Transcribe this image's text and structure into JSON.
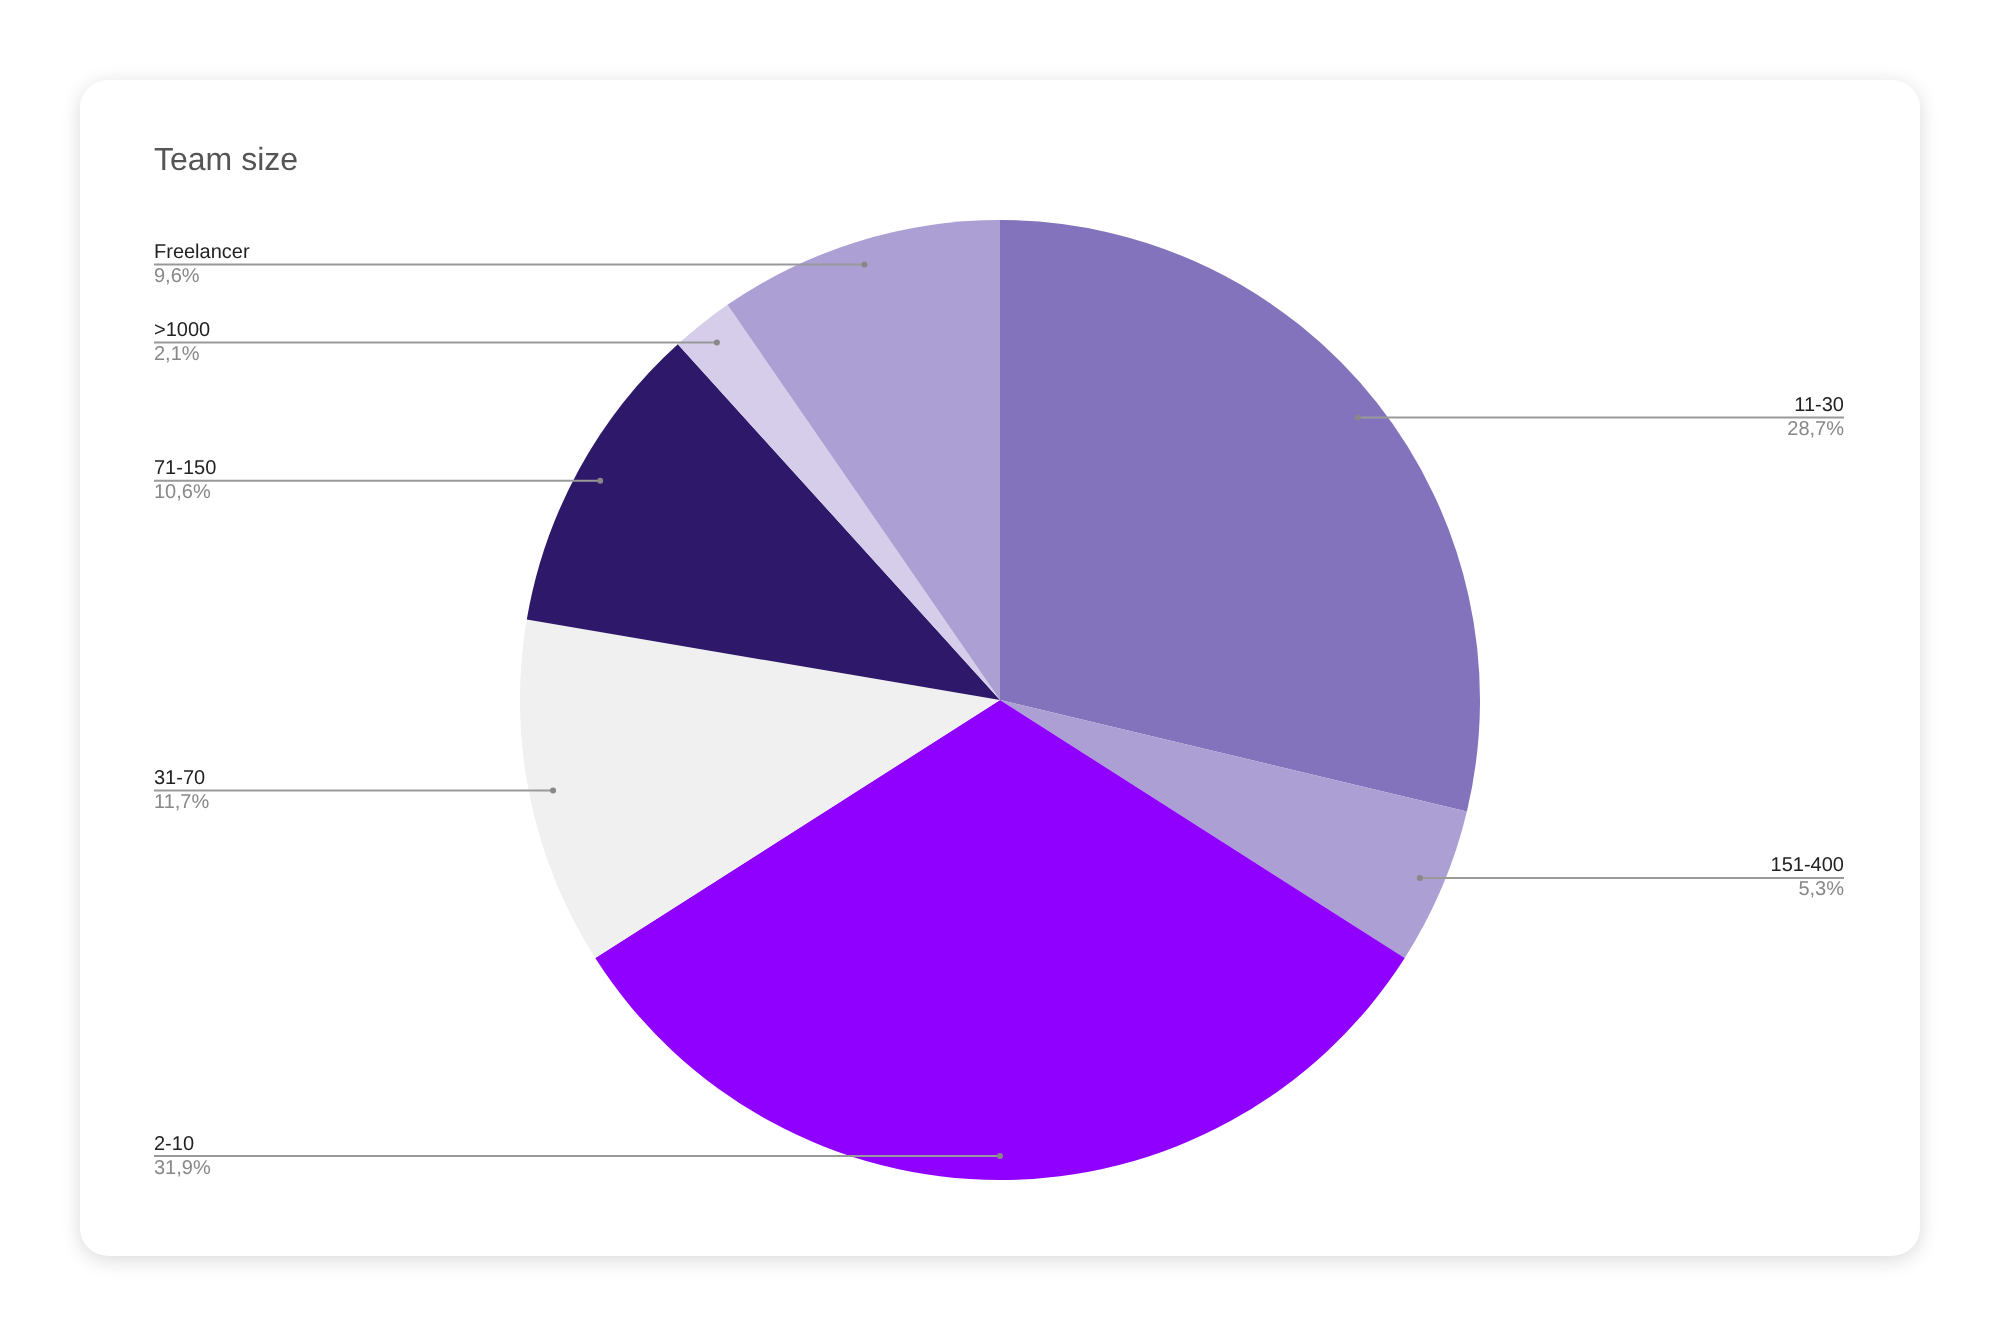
{
  "chart_data": {
    "type": "pie",
    "title": "Team size",
    "categories": [
      "11-30",
      "151-400",
      "2-10",
      "31-70",
      "71-150",
      ">1000",
      "Freelancer"
    ],
    "values": [
      28.7,
      5.3,
      31.9,
      11.7,
      10.6,
      2.1,
      9.6
    ],
    "value_labels": [
      "28,7%",
      "5,3%",
      "31,9%",
      "11,7%",
      "10,6%",
      "2,1%",
      "9,6%"
    ],
    "colors": [
      "#8373bd",
      "#ab9fd3",
      "#8f00ff",
      "#f0f0f0",
      "#2e186a",
      "#d5cdea",
      "#ab9fd3"
    ],
    "legend": false
  }
}
